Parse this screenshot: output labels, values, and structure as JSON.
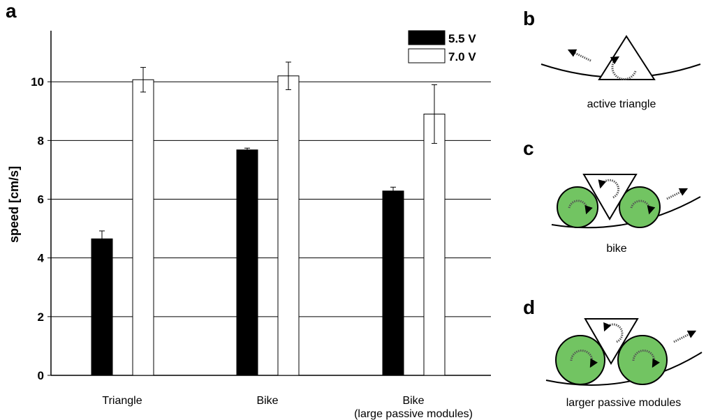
{
  "chart_data": {
    "type": "bar",
    "panel_label": "a",
    "ylabel": "speed [cm/s]",
    "ylim": [
      0,
      12
    ],
    "yticks": [
      0,
      2,
      4,
      6,
      8,
      10
    ],
    "grid": true,
    "legend_position": "top-right",
    "categories": [
      [
        "Triangle"
      ],
      [
        "Bike"
      ],
      [
        "Bike",
        "(large passive modules)"
      ]
    ],
    "series": [
      {
        "name": "5.5 V",
        "color": "#000000",
        "values": [
          4.65,
          7.68,
          6.28
        ],
        "errors": [
          0.27,
          0.06,
          0.13
        ]
      },
      {
        "name": "7.0 V",
        "color": "#ffffff",
        "values": [
          10.07,
          10.2,
          8.9
        ],
        "errors": [
          0.42,
          0.47,
          1.0
        ]
      }
    ]
  },
  "diagrams": [
    {
      "panel_label": "b",
      "caption": "active triangle"
    },
    {
      "panel_label": "c",
      "caption": "bike"
    },
    {
      "panel_label": "d",
      "caption": "larger passive modules"
    }
  ],
  "colors": {
    "module_fill": "#72c462",
    "stroke": "#000000"
  }
}
